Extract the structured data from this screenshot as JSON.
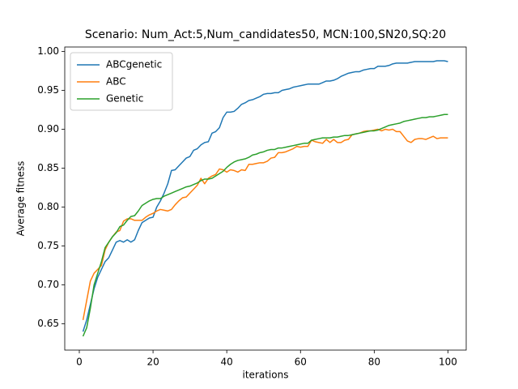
{
  "chart_data": {
    "type": "line",
    "title": "Scenario: Num_Act:5,Num_candidates50, MCN:100,SN20,SQ:20",
    "xlabel": "iterations",
    "ylabel": "Average fitness",
    "x": [
      1,
      2,
      3,
      4,
      5,
      6,
      7,
      8,
      9,
      10,
      11,
      12,
      13,
      14,
      15,
      16,
      17,
      18,
      19,
      20,
      21,
      22,
      23,
      24,
      25,
      26,
      27,
      28,
      29,
      30,
      31,
      32,
      33,
      34,
      35,
      36,
      37,
      38,
      39,
      40,
      41,
      42,
      43,
      44,
      45,
      46,
      47,
      48,
      49,
      50,
      51,
      52,
      53,
      54,
      55,
      56,
      57,
      58,
      59,
      60,
      61,
      62,
      63,
      64,
      65,
      66,
      67,
      68,
      69,
      70,
      71,
      72,
      73,
      74,
      75,
      76,
      77,
      78,
      79,
      80,
      81,
      82,
      83,
      84,
      85,
      86,
      87,
      88,
      89,
      90,
      91,
      92,
      93,
      94,
      95,
      96,
      97,
      98,
      99,
      100
    ],
    "series": [
      {
        "name": "ABCgenetic",
        "color": "#1f77b4",
        "values": [
          0.64,
          0.655,
          0.675,
          0.695,
          0.71,
          0.72,
          0.73,
          0.735,
          0.745,
          0.755,
          0.757,
          0.755,
          0.758,
          0.755,
          0.758,
          0.77,
          0.78,
          0.783,
          0.786,
          0.787,
          0.8,
          0.808,
          0.818,
          0.83,
          0.847,
          0.848,
          0.853,
          0.858,
          0.863,
          0.865,
          0.873,
          0.875,
          0.88,
          0.883,
          0.884,
          0.895,
          0.897,
          0.902,
          0.915,
          0.922,
          0.922,
          0.923,
          0.927,
          0.932,
          0.934,
          0.937,
          0.938,
          0.94,
          0.942,
          0.945,
          0.946,
          0.946,
          0.947,
          0.947,
          0.95,
          0.951,
          0.952,
          0.954,
          0.955,
          0.956,
          0.957,
          0.958,
          0.958,
          0.958,
          0.958,
          0.96,
          0.962,
          0.962,
          0.963,
          0.965,
          0.968,
          0.97,
          0.972,
          0.973,
          0.974,
          0.974,
          0.976,
          0.977,
          0.978,
          0.978,
          0.981,
          0.981,
          0.981,
          0.982,
          0.984,
          0.985,
          0.985,
          0.985,
          0.985,
          0.986,
          0.987,
          0.987,
          0.987,
          0.987,
          0.987,
          0.987,
          0.988,
          0.988,
          0.988,
          0.987
        ]
      },
      {
        "name": "ABC",
        "color": "#ff7f0e",
        "values": [
          0.655,
          0.68,
          0.705,
          0.715,
          0.72,
          0.725,
          0.745,
          0.755,
          0.762,
          0.768,
          0.77,
          0.782,
          0.785,
          0.785,
          0.783,
          0.783,
          0.783,
          0.787,
          0.79,
          0.792,
          0.795,
          0.797,
          0.796,
          0.795,
          0.797,
          0.803,
          0.808,
          0.812,
          0.813,
          0.818,
          0.823,
          0.828,
          0.837,
          0.83,
          0.837,
          0.84,
          0.842,
          0.849,
          0.848,
          0.845,
          0.848,
          0.847,
          0.845,
          0.848,
          0.847,
          0.855,
          0.855,
          0.856,
          0.857,
          0.857,
          0.859,
          0.863,
          0.864,
          0.87,
          0.87,
          0.871,
          0.873,
          0.875,
          0.878,
          0.877,
          0.878,
          0.878,
          0.886,
          0.884,
          0.883,
          0.882,
          0.887,
          0.883,
          0.887,
          0.883,
          0.883,
          0.886,
          0.887,
          0.893,
          0.894,
          0.895,
          0.897,
          0.898,
          0.898,
          0.899,
          0.9,
          0.898,
          0.9,
          0.899,
          0.9,
          0.897,
          0.897,
          0.891,
          0.885,
          0.883,
          0.887,
          0.888,
          0.888,
          0.887,
          0.889,
          0.891,
          0.888,
          0.889,
          0.889,
          0.889
        ]
      },
      {
        "name": "Genetic",
        "color": "#2ca02c",
        "values": [
          0.634,
          0.645,
          0.67,
          0.7,
          0.715,
          0.73,
          0.748,
          0.755,
          0.762,
          0.767,
          0.775,
          0.777,
          0.783,
          0.788,
          0.789,
          0.795,
          0.802,
          0.805,
          0.808,
          0.81,
          0.811,
          0.811,
          0.814,
          0.816,
          0.818,
          0.82,
          0.822,
          0.824,
          0.826,
          0.827,
          0.829,
          0.831,
          0.834,
          0.836,
          0.836,
          0.837,
          0.84,
          0.843,
          0.846,
          0.851,
          0.855,
          0.858,
          0.86,
          0.861,
          0.862,
          0.864,
          0.867,
          0.868,
          0.87,
          0.871,
          0.873,
          0.874,
          0.874,
          0.876,
          0.876,
          0.877,
          0.878,
          0.879,
          0.88,
          0.881,
          0.882,
          0.882,
          0.886,
          0.887,
          0.888,
          0.889,
          0.889,
          0.889,
          0.89,
          0.89,
          0.891,
          0.892,
          0.892,
          0.893,
          0.894,
          0.895,
          0.896,
          0.897,
          0.898,
          0.898,
          0.899,
          0.901,
          0.903,
          0.905,
          0.906,
          0.907,
          0.908,
          0.91,
          0.911,
          0.912,
          0.913,
          0.914,
          0.915,
          0.915,
          0.916,
          0.916,
          0.917,
          0.918,
          0.919,
          0.919
        ]
      }
    ],
    "xlim": [
      -3.95,
      104.95
    ],
    "xticks": [
      0,
      20,
      40,
      60,
      80,
      100
    ],
    "ylim": [
      0.6163,
      1.0057
    ],
    "yticks": [
      0.65,
      {
        "value": 0.7,
        "label": "0.70"
      },
      0.75,
      {
        "value": 0.8,
        "label": "0.80"
      },
      0.85,
      {
        "value": 0.9,
        "label": "0.90"
      },
      0.95,
      {
        "value": 1.0,
        "label": "1.00"
      }
    ],
    "legend": "upper left",
    "grid": false
  }
}
